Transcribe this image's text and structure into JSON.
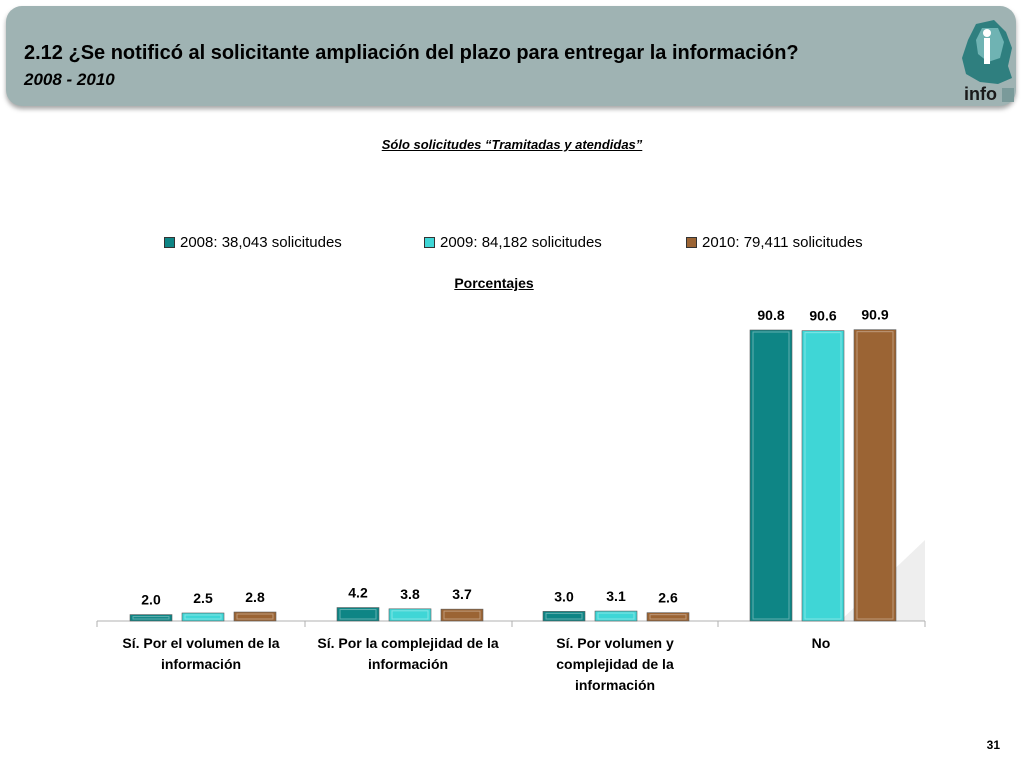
{
  "header": {
    "title": "2.12 ¿Se notificó al solicitante ampliación del plazo para entregar la información?",
    "subtitle": "2008 - 2010",
    "logo_text": "info"
  },
  "note": "Sólo solicitudes “Tramitadas y atendidas”",
  "units_label": "Porcentajes",
  "page_number": "31",
  "colors": {
    "banner": "#9fb3b3",
    "series_2008": "#0e8585",
    "series_2009": "#3fd6d6",
    "series_2010": "#9b6434"
  },
  "legend": [
    {
      "label": "2008: 38,043 solicitudes",
      "color": "#0e8585"
    },
    {
      "label": "2009: 84,182 solicitudes",
      "color": "#3fd6d6"
    },
    {
      "label": "2010: 79,411 solicitudes",
      "color": "#9b6434"
    }
  ],
  "chart_data": {
    "type": "bar",
    "categories": [
      [
        "Sí. Por el volumen de la",
        "información"
      ],
      [
        "Sí. Por la complejidad de la",
        "información"
      ],
      [
        "Sí. Por volumen y",
        "complejidad de la",
        "información"
      ],
      [
        "No"
      ]
    ],
    "series": [
      {
        "name": "2008: 38,043 solicitudes",
        "values": [
          2.0,
          4.2,
          3.0,
          90.8
        ],
        "labels": [
          "2.0",
          "4.2",
          "3.0",
          "90.8"
        ]
      },
      {
        "name": "2009: 84,182 solicitudes",
        "values": [
          2.5,
          3.8,
          3.1,
          90.6
        ],
        "labels": [
          "2.5",
          "3.8",
          "3.1",
          "90.6"
        ]
      },
      {
        "name": "2010: 79,411 solicitudes",
        "values": [
          2.8,
          3.7,
          2.6,
          90.9
        ],
        "labels": [
          "2.8",
          "3.7",
          "2.6",
          "90.9"
        ]
      }
    ],
    "ylabel": "Porcentajes",
    "ylim": [
      0,
      100
    ],
    "grid": false,
    "legend_position": "top"
  }
}
